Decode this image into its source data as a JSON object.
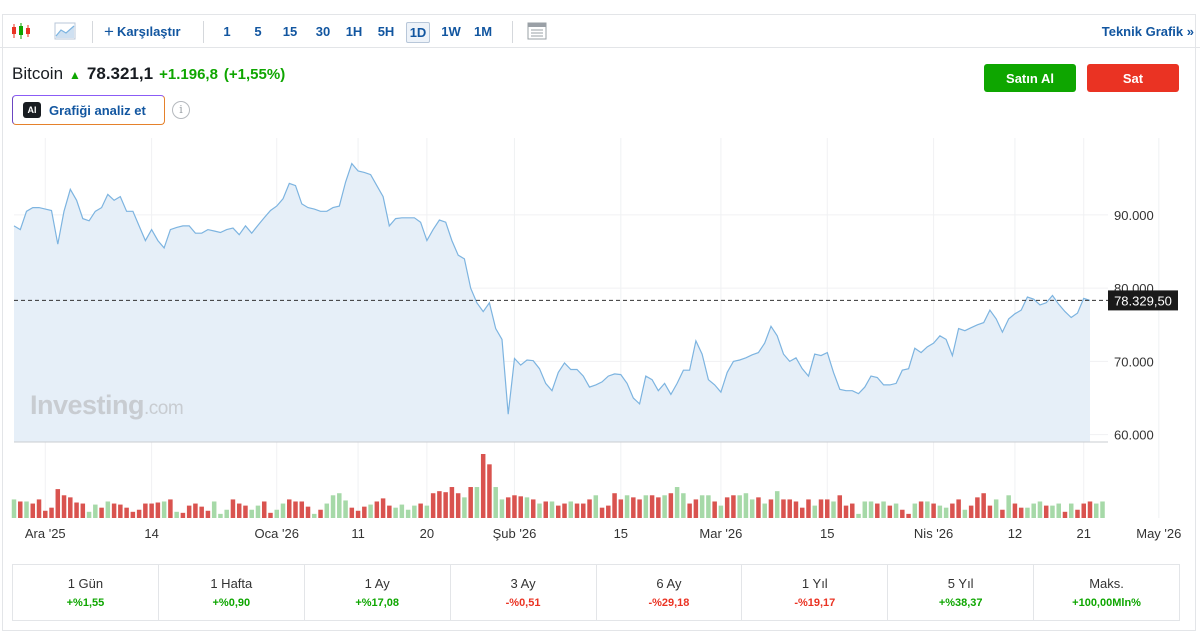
{
  "toolbar": {
    "compare_label": "Karşılaştır",
    "intervals": [
      "1",
      "5",
      "15",
      "30",
      "1H",
      "5H",
      "1D",
      "1W",
      "1M"
    ],
    "active_interval": "1D",
    "technical_label": "Teknik Grafik »"
  },
  "header": {
    "asset_name": "Bitcoin",
    "price": "78.321,1",
    "change": "+1.196,8",
    "change_pct": "(+1,55%)",
    "buy_label": "Satın Al",
    "sell_label": "Sat",
    "analyze_label": "Grafiği analiz et",
    "ai_badge": "AI"
  },
  "watermark": {
    "brand": "Investing",
    "suffix": ".com"
  },
  "colors": {
    "line": "#7db4e0",
    "area": "#e6eff8",
    "up": "#0ea600",
    "down": "#ea3323",
    "vol_up": "#a6d9a8",
    "vol_down": "#d9534f"
  },
  "chart_data": {
    "type": "area",
    "y_ticks": [
      "90.000",
      "80.000",
      "70.000",
      "60.000"
    ],
    "ylim": [
      59000,
      100500
    ],
    "current_price_label": "78.329,50",
    "current_price": 78329.5,
    "x_tick_labels": [
      "Ara '25",
      "14",
      "Oca '26",
      "11",
      "20",
      "Şub '26",
      "15",
      "Mar '26",
      "15",
      "Nis '26",
      "12",
      "21",
      "May '26"
    ],
    "x_tick_index": [
      5,
      22,
      42,
      55,
      66,
      80,
      97,
      113,
      130,
      147,
      160,
      171,
      183
    ],
    "values": [
      88500,
      88000,
      90500,
      91000,
      91000,
      90800,
      90600,
      86000,
      90500,
      93500,
      92000,
      89500,
      89200,
      90500,
      91000,
      92800,
      92000,
      92500,
      90500,
      90500,
      88500,
      86500,
      88000,
      86500,
      85500,
      88000,
      88300,
      88500,
      88500,
      87500,
      87500,
      88000,
      87800,
      87600,
      88000,
      88200,
      87300,
      88500,
      87500,
      88600,
      89600,
      90600,
      91200,
      92200,
      94300,
      94000,
      91500,
      91000,
      90800,
      90500,
      90500,
      91000,
      91200,
      94500,
      97000,
      96000,
      95800,
      95500,
      94000,
      92500,
      88500,
      89500,
      89600,
      89600,
      89600,
      89000,
      86500,
      88000,
      89300,
      89000,
      86500,
      84500,
      84000,
      80000,
      78000,
      76800,
      78000,
      74500,
      73000,
      62800,
      70400,
      69500,
      70200,
      70100,
      69000,
      67000,
      66000,
      68500,
      69800,
      68900,
      68900,
      68000,
      66500,
      66800,
      67200,
      68000,
      68300,
      68200,
      67000,
      65000,
      64200,
      68000,
      67500,
      66000,
      67000,
      65500,
      67000,
      68800,
      68800,
      72800,
      71000,
      67500,
      66800,
      65800,
      68500,
      70000,
      70200,
      70500,
      70900,
      71200,
      72500,
      74800,
      73500,
      71000,
      70000,
      70500,
      69000,
      68000,
      71000,
      70800,
      71200,
      68500,
      66200,
      66000,
      66000,
      65600,
      66500,
      68000,
      67800,
      66800,
      66800,
      67000,
      68800,
      69000,
      71800,
      71200,
      72000,
      72500,
      73500,
      73000,
      70800,
      74500,
      74200,
      74600,
      75000,
      75300,
      77000,
      75800,
      74000,
      75800,
      76500,
      77000,
      78800,
      78500,
      77700,
      78000,
      79000,
      77800,
      76800,
      76000,
      76600,
      78600,
      78321
    ],
    "volume": [
      {
        "v": 18,
        "up": 1
      },
      {
        "v": 16,
        "up": 0
      },
      {
        "v": 16,
        "up": 1
      },
      {
        "v": 14,
        "up": 0
      },
      {
        "v": 18,
        "up": 0
      },
      {
        "v": 7,
        "up": 0
      },
      {
        "v": 10,
        "up": 0
      },
      {
        "v": 28,
        "up": 0
      },
      {
        "v": 22,
        "up": 0
      },
      {
        "v": 20,
        "up": 0
      },
      {
        "v": 15,
        "up": 0
      },
      {
        "v": 14,
        "up": 0
      },
      {
        "v": 6,
        "up": 1
      },
      {
        "v": 13,
        "up": 1
      },
      {
        "v": 10,
        "up": 0
      },
      {
        "v": 16,
        "up": 1
      },
      {
        "v": 14,
        "up": 0
      },
      {
        "v": 13,
        "up": 0
      },
      {
        "v": 10,
        "up": 0
      },
      {
        "v": 6,
        "up": 0
      },
      {
        "v": 8,
        "up": 0
      },
      {
        "v": 14,
        "up": 0
      },
      {
        "v": 14,
        "up": 0
      },
      {
        "v": 15,
        "up": 0
      },
      {
        "v": 16,
        "up": 1
      },
      {
        "v": 18,
        "up": 0
      },
      {
        "v": 6,
        "up": 1
      },
      {
        "v": 5,
        "up": 0
      },
      {
        "v": 12,
        "up": 0
      },
      {
        "v": 14,
        "up": 0
      },
      {
        "v": 11,
        "up": 0
      },
      {
        "v": 7,
        "up": 0
      },
      {
        "v": 16,
        "up": 1
      },
      {
        "v": 4,
        "up": 1
      },
      {
        "v": 8,
        "up": 1
      },
      {
        "v": 18,
        "up": 0
      },
      {
        "v": 14,
        "up": 0
      },
      {
        "v": 12,
        "up": 0
      },
      {
        "v": 8,
        "up": 1
      },
      {
        "v": 12,
        "up": 1
      },
      {
        "v": 16,
        "up": 0
      },
      {
        "v": 5,
        "up": 0
      },
      {
        "v": 8,
        "up": 1
      },
      {
        "v": 14,
        "up": 1
      },
      {
        "v": 18,
        "up": 0
      },
      {
        "v": 16,
        "up": 0
      },
      {
        "v": 16,
        "up": 0
      },
      {
        "v": 11,
        "up": 0
      },
      {
        "v": 4,
        "up": 1
      },
      {
        "v": 8,
        "up": 0
      },
      {
        "v": 14,
        "up": 1
      },
      {
        "v": 22,
        "up": 1
      },
      {
        "v": 24,
        "up": 1
      },
      {
        "v": 17,
        "up": 1
      },
      {
        "v": 10,
        "up": 0
      },
      {
        "v": 7,
        "up": 0
      },
      {
        "v": 11,
        "up": 0
      },
      {
        "v": 13,
        "up": 1
      },
      {
        "v": 16,
        "up": 0
      },
      {
        "v": 19,
        "up": 0
      },
      {
        "v": 12,
        "up": 0
      },
      {
        "v": 10,
        "up": 1
      },
      {
        "v": 13,
        "up": 1
      },
      {
        "v": 8,
        "up": 1
      },
      {
        "v": 12,
        "up": 1
      },
      {
        "v": 14,
        "up": 0
      },
      {
        "v": 12,
        "up": 1
      },
      {
        "v": 24,
        "up": 0
      },
      {
        "v": 26,
        "up": 0
      },
      {
        "v": 25,
        "up": 0
      },
      {
        "v": 30,
        "up": 0
      },
      {
        "v": 24,
        "up": 0
      },
      {
        "v": 20,
        "up": 1
      },
      {
        "v": 30,
        "up": 0
      },
      {
        "v": 30,
        "up": 1
      },
      {
        "v": 62,
        "up": 0
      },
      {
        "v": 52,
        "up": 0
      },
      {
        "v": 30,
        "up": 1
      },
      {
        "v": 18,
        "up": 1
      },
      {
        "v": 20,
        "up": 0
      },
      {
        "v": 22,
        "up": 0
      },
      {
        "v": 21,
        "up": 0
      },
      {
        "v": 20,
        "up": 1
      },
      {
        "v": 18,
        "up": 0
      },
      {
        "v": 14,
        "up": 1
      },
      {
        "v": 16,
        "up": 0
      },
      {
        "v": 16,
        "up": 1
      },
      {
        "v": 12,
        "up": 0
      },
      {
        "v": 14,
        "up": 0
      },
      {
        "v": 16,
        "up": 1
      },
      {
        "v": 14,
        "up": 0
      },
      {
        "v": 14,
        "up": 0
      },
      {
        "v": 18,
        "up": 0
      },
      {
        "v": 22,
        "up": 1
      },
      {
        "v": 10,
        "up": 0
      },
      {
        "v": 12,
        "up": 0
      },
      {
        "v": 24,
        "up": 0
      },
      {
        "v": 18,
        "up": 0
      },
      {
        "v": 22,
        "up": 1
      },
      {
        "v": 20,
        "up": 0
      },
      {
        "v": 18,
        "up": 0
      },
      {
        "v": 22,
        "up": 1
      },
      {
        "v": 22,
        "up": 0
      },
      {
        "v": 20,
        "up": 0
      },
      {
        "v": 22,
        "up": 1
      },
      {
        "v": 24,
        "up": 0
      },
      {
        "v": 30,
        "up": 1
      },
      {
        "v": 24,
        "up": 1
      },
      {
        "v": 14,
        "up": 0
      },
      {
        "v": 18,
        "up": 0
      },
      {
        "v": 22,
        "up": 1
      },
      {
        "v": 22,
        "up": 1
      },
      {
        "v": 16,
        "up": 0
      },
      {
        "v": 12,
        "up": 1
      },
      {
        "v": 20,
        "up": 0
      },
      {
        "v": 22,
        "up": 0
      },
      {
        "v": 22,
        "up": 1
      },
      {
        "v": 24,
        "up": 1
      },
      {
        "v": 18,
        "up": 1
      },
      {
        "v": 20,
        "up": 0
      },
      {
        "v": 14,
        "up": 1
      },
      {
        "v": 18,
        "up": 0
      },
      {
        "v": 26,
        "up": 1
      },
      {
        "v": 18,
        "up": 0
      },
      {
        "v": 18,
        "up": 0
      },
      {
        "v": 16,
        "up": 0
      },
      {
        "v": 10,
        "up": 0
      },
      {
        "v": 18,
        "up": 0
      },
      {
        "v": 12,
        "up": 1
      },
      {
        "v": 18,
        "up": 0
      },
      {
        "v": 18,
        "up": 0
      },
      {
        "v": 16,
        "up": 1
      },
      {
        "v": 22,
        "up": 0
      },
      {
        "v": 12,
        "up": 0
      },
      {
        "v": 14,
        "up": 0
      },
      {
        "v": 4,
        "up": 1
      },
      {
        "v": 16,
        "up": 1
      },
      {
        "v": 16,
        "up": 1
      },
      {
        "v": 14,
        "up": 0
      },
      {
        "v": 16,
        "up": 1
      },
      {
        "v": 12,
        "up": 0
      },
      {
        "v": 14,
        "up": 1
      },
      {
        "v": 8,
        "up": 0
      },
      {
        "v": 4,
        "up": 0
      },
      {
        "v": 14,
        "up": 1
      },
      {
        "v": 16,
        "up": 0
      },
      {
        "v": 16,
        "up": 1
      },
      {
        "v": 14,
        "up": 0
      },
      {
        "v": 12,
        "up": 1
      },
      {
        "v": 10,
        "up": 1
      },
      {
        "v": 14,
        "up": 0
      },
      {
        "v": 18,
        "up": 0
      },
      {
        "v": 8,
        "up": 1
      },
      {
        "v": 12,
        "up": 0
      },
      {
        "v": 20,
        "up": 0
      },
      {
        "v": 24,
        "up": 0
      },
      {
        "v": 12,
        "up": 0
      },
      {
        "v": 18,
        "up": 1
      },
      {
        "v": 8,
        "up": 0
      },
      {
        "v": 22,
        "up": 1
      },
      {
        "v": 14,
        "up": 0
      },
      {
        "v": 10,
        "up": 0
      },
      {
        "v": 10,
        "up": 1
      },
      {
        "v": 14,
        "up": 1
      },
      {
        "v": 16,
        "up": 1
      },
      {
        "v": 12,
        "up": 0
      },
      {
        "v": 12,
        "up": 1
      },
      {
        "v": 14,
        "up": 1
      },
      {
        "v": 6,
        "up": 0
      },
      {
        "v": 14,
        "up": 1
      },
      {
        "v": 8,
        "up": 0
      },
      {
        "v": 14,
        "up": 0
      },
      {
        "v": 16,
        "up": 0
      },
      {
        "v": 14,
        "up": 1
      },
      {
        "v": 16,
        "up": 1
      }
    ]
  },
  "periods": [
    {
      "label": "1 Gün",
      "value": "+%1,55",
      "dir": "pos"
    },
    {
      "label": "1 Hafta",
      "value": "+%0,90",
      "dir": "pos"
    },
    {
      "label": "1 Ay",
      "value": "+%17,08",
      "dir": "pos"
    },
    {
      "label": "3 Ay",
      "value": "-%0,51",
      "dir": "neg"
    },
    {
      "label": "6 Ay",
      "value": "-%29,18",
      "dir": "neg"
    },
    {
      "label": "1 Yıl",
      "value": "-%19,17",
      "dir": "neg"
    },
    {
      "label": "5 Yıl",
      "value": "+%38,37",
      "dir": "pos"
    },
    {
      "label": "Maks.",
      "value": "+100,00Mln%",
      "dir": "pos"
    }
  ]
}
